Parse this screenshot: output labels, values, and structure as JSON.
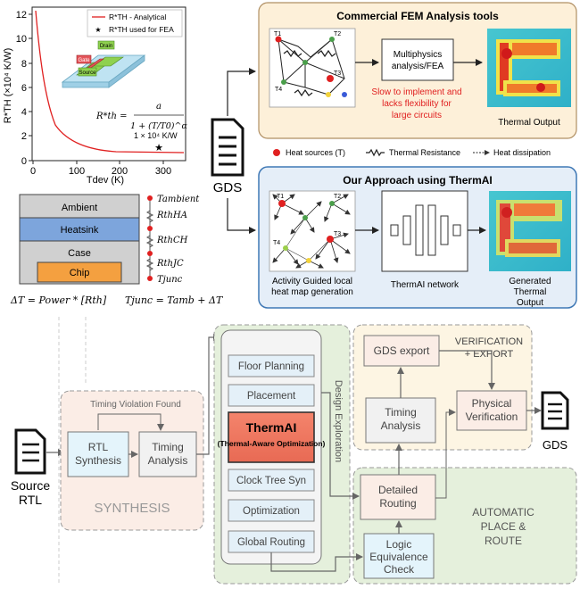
{
  "plot": {
    "y_label": "R*TH (×10⁴ K/W)",
    "x_label": "Tdev (K)",
    "y_ticks": [
      "12",
      "10",
      "8",
      "6",
      "4",
      "2",
      "0"
    ],
    "x_ticks": [
      "0",
      "100",
      "200",
      "300"
    ],
    "legend_line": "R*TH - Analytical",
    "legend_star": "R*TH used for FEA",
    "formula_lhs": "R*th =",
    "formula_num": "a",
    "formula_den": "1 + (T/T0)^α",
    "annotation": "1 × 10⁴ K/W",
    "chip_labels": [
      "Drain",
      "Gate",
      "Source"
    ]
  },
  "stack": {
    "layers": [
      "Ambient",
      "Heatsink",
      "Case",
      "Chip"
    ],
    "nodes": [
      "Tambient",
      "RthHA",
      "RthCH",
      "RthJC",
      "Tjunc"
    ],
    "eq1": "ΔT = Power * [Rth]",
    "eq2": "Tjunc = Tamb + ΔT"
  },
  "fem": {
    "title": "Commercial FEM Analysis tools",
    "process": "Multiphysics analysis/FEA",
    "warning": "Slow to implement and lacks flexibility for large circuits",
    "output": "Thermal Output",
    "graph_labels": [
      "T1",
      "T2",
      "T3",
      "T4"
    ]
  },
  "legend_row": {
    "heat": "Heat sources (T)",
    "resistance": "Thermal Resistance",
    "dissipation": "Heat dissipation"
  },
  "gds_label": "GDS",
  "approach": {
    "title": "Our Approach using ThermAI",
    "graph_caption": "Activity Guided local heat map generation",
    "network_caption": "ThermAI network",
    "output": "Generated Thermal Output",
    "graph_labels": [
      "T1",
      "T2",
      "T3",
      "T4"
    ]
  },
  "flow": {
    "source": "Source RTL",
    "synthesis_title": "Timing Violation Found",
    "rtl_synthesis": "RTL Synthesis",
    "timing_analysis": "Timing Analysis",
    "synthesis_label": "SYNTHESIS",
    "design_exploration": "Design Exploration",
    "steps": [
      "Floor Planning",
      "Placement",
      "Clock Tree Syn",
      "Optimization",
      "Global Routing"
    ],
    "thermai": "ThermAI",
    "thermai_sub": "(Thermal-Aware Optimization)",
    "verification_title": "VERIFICATION + EXPORT",
    "gds_export": "GDS export",
    "timing_analysis2": "Timing Analysis",
    "physical_verification": "Physical Verification",
    "gds_out": "GDS",
    "detailed_routing": "Detailed Routing",
    "logic_check": "Logic Equivalence Check",
    "apr_label": "AUTOMATIC PLACE & ROUTE"
  },
  "colors": {
    "red": "#e02020",
    "fem_bg": "#fdf0d9",
    "fem_border": "#b08f63",
    "approach_bg": "#e5eef8",
    "approach_border": "#3f78b5",
    "heatsink": "#7da5dc",
    "chip": "#f4a040"
  }
}
